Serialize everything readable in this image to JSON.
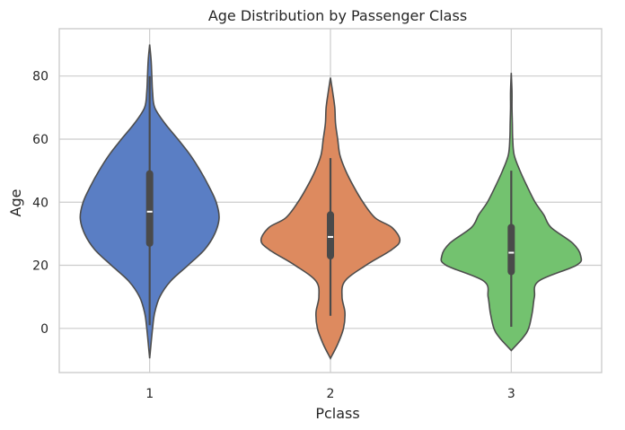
{
  "chart_data": {
    "type": "violin",
    "title": "Age Distribution by Passenger Class",
    "xlabel": "Pclass",
    "ylabel": "Age",
    "categories": [
      "1",
      "2",
      "3"
    ],
    "ylim": [
      -14,
      95
    ],
    "yticks": [
      0,
      20,
      40,
      60,
      80
    ],
    "grid": true,
    "colors": [
      "#5a7ec4",
      "#dd8a5f",
      "#73c26f"
    ],
    "outline_color": "#4d4d4d",
    "series": [
      {
        "category": "1",
        "density_profile": [
          [
            -9.5,
            0.0
          ],
          [
            0,
            0.04
          ],
          [
            5,
            0.07
          ],
          [
            10,
            0.14
          ],
          [
            15,
            0.29
          ],
          [
            20,
            0.53
          ],
          [
            25,
            0.76
          ],
          [
            30,
            0.9
          ],
          [
            35,
            0.96
          ],
          [
            40,
            0.92
          ],
          [
            45,
            0.82
          ],
          [
            50,
            0.7
          ],
          [
            55,
            0.56
          ],
          [
            60,
            0.39
          ],
          [
            65,
            0.21
          ],
          [
            70,
            0.07
          ],
          [
            75,
            0.04
          ],
          [
            80,
            0.03
          ],
          [
            85,
            0.02
          ],
          [
            90,
            0.0
          ]
        ],
        "whisker": [
          1,
          80
        ],
        "quartiles": [
          27,
          49
        ],
        "median": 37
      },
      {
        "category": "2",
        "density_profile": [
          [
            -9.5,
            0.0
          ],
          [
            -5,
            0.1
          ],
          [
            0,
            0.18
          ],
          [
            5,
            0.2
          ],
          [
            10,
            0.16
          ],
          [
            15,
            0.2
          ],
          [
            20,
            0.49
          ],
          [
            25,
            0.85
          ],
          [
            28,
            0.96
          ],
          [
            32,
            0.85
          ],
          [
            35,
            0.62
          ],
          [
            40,
            0.45
          ],
          [
            45,
            0.32
          ],
          [
            50,
            0.21
          ],
          [
            55,
            0.13
          ],
          [
            60,
            0.1
          ],
          [
            65,
            0.07
          ],
          [
            70,
            0.06
          ],
          [
            75,
            0.03
          ],
          [
            79.5,
            0.0
          ]
        ],
        "whisker": [
          4,
          54
        ],
        "quartiles": [
          23,
          36
        ],
        "median": 29
      },
      {
        "category": "3",
        "density_profile": [
          [
            -7,
            0.0
          ],
          [
            -3,
            0.16
          ],
          [
            0,
            0.24
          ],
          [
            5,
            0.29
          ],
          [
            10,
            0.32
          ],
          [
            15,
            0.38
          ],
          [
            20,
            0.9
          ],
          [
            23,
            0.96
          ],
          [
            27,
            0.85
          ],
          [
            32,
            0.55
          ],
          [
            36,
            0.45
          ],
          [
            40,
            0.33
          ],
          [
            45,
            0.22
          ],
          [
            50,
            0.12
          ],
          [
            55,
            0.04
          ],
          [
            60,
            0.02
          ],
          [
            65,
            0.015
          ],
          [
            70,
            0.01
          ],
          [
            75,
            0.01
          ],
          [
            81,
            0.0
          ]
        ],
        "whisker": [
          0.5,
          50
        ],
        "quartiles": [
          18,
          32
        ],
        "median": 24
      }
    ]
  }
}
